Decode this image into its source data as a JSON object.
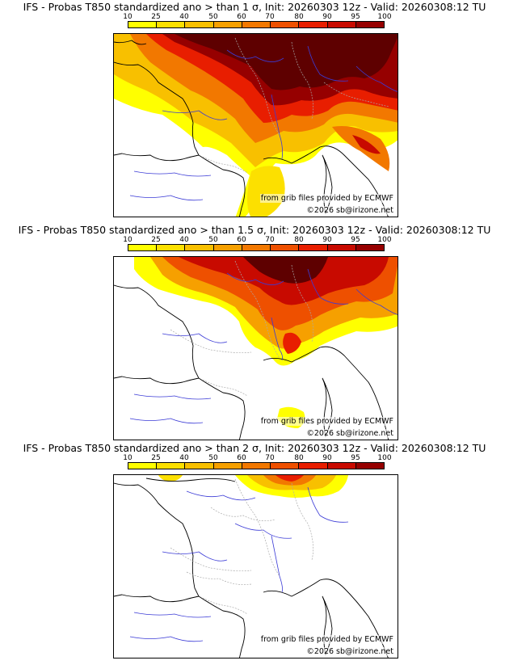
{
  "colorbar": {
    "labels": [
      "10",
      "25",
      "40",
      "50",
      "60",
      "70",
      "80",
      "90",
      "95",
      "100"
    ],
    "colors": [
      "#ffff00",
      "#fce000",
      "#f8c000",
      "#f6a000",
      "#f27800",
      "#ee5000",
      "#e81e00",
      "#c80a00",
      "#960000",
      "#5e0000"
    ]
  },
  "credits": {
    "source": "from grib files provided by ECMWF",
    "copyright": "©2026 sb@irizone.net"
  },
  "map_colors": {
    "coast": "#000000",
    "rivers": "#3b3bd6",
    "borders": "#aaaaaa"
  },
  "panels": [
    {
      "title": "IFS - Probas T850  standardized ano > than 1 σ, Init: 20260303 12z - Valid: 20260308:12 TU",
      "threshold": "1 σ"
    },
    {
      "title": "IFS - Probas T850  standardized ano > than 1.5 σ, Init: 20260303 12z - Valid: 20260308:12 TU",
      "threshold": "1.5 σ"
    },
    {
      "title": "IFS - Probas T850  standardized ano > than 2 σ, Init: 20260303 12z - Valid: 20260308:12 TU",
      "threshold": "2 σ"
    }
  ]
}
